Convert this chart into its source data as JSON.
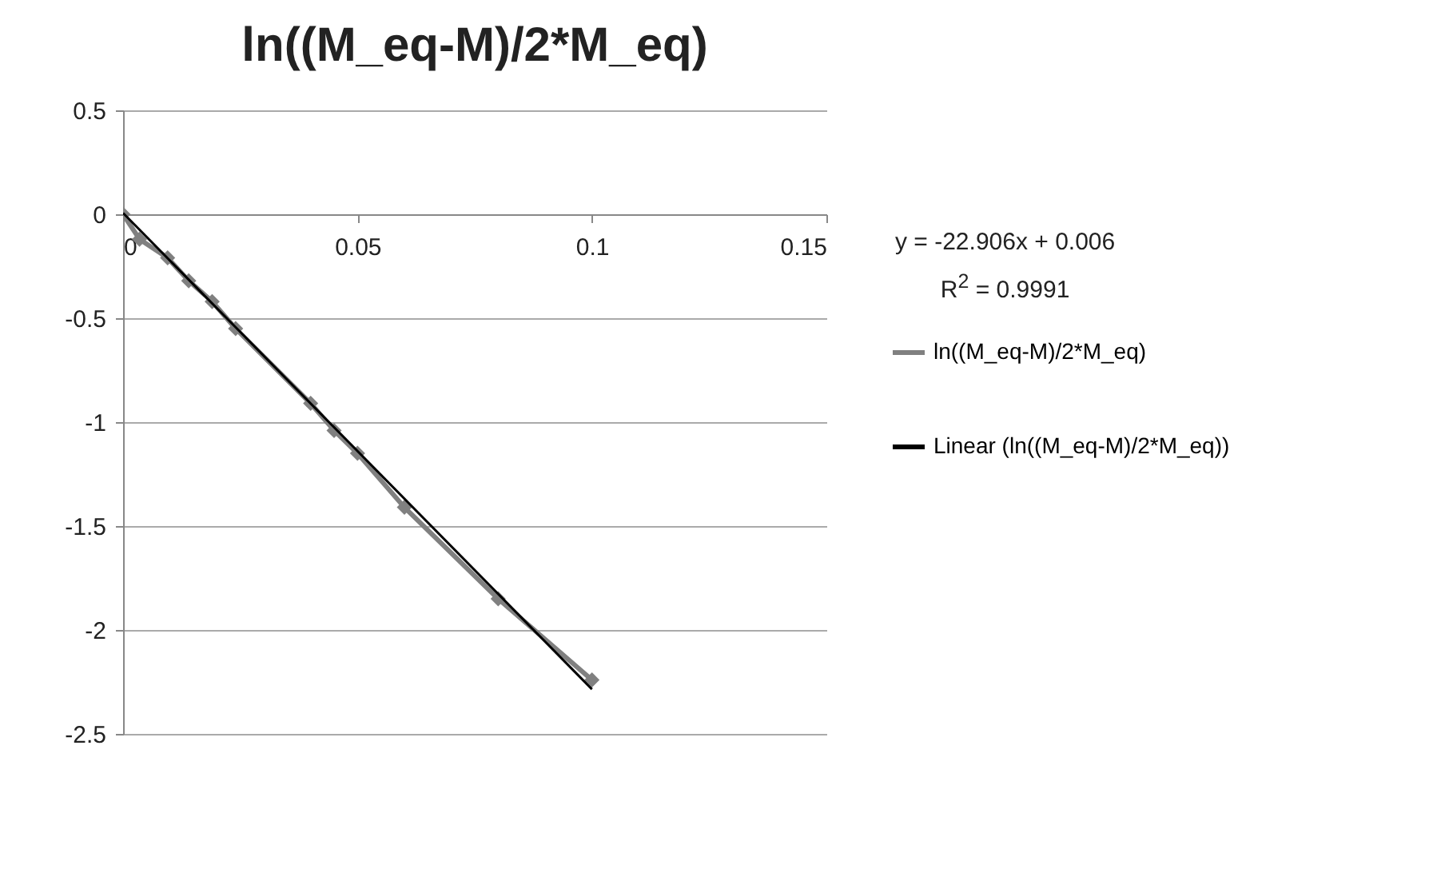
{
  "chart_data": {
    "type": "line",
    "title": "ln((M_eq-M)/2*M_eq)",
    "annotations": [
      "y = -22.906x + 0.006",
      "R$^{2}$ = 0.9991"
    ],
    "series": [
      {
        "name": "ln((M_eq-M)/2*M_eq)",
        "color": "#808080",
        "marker": "diamond",
        "x": [
          0,
          0.0035,
          0.0095,
          0.014,
          0.019,
          0.024,
          0.04,
          0.045,
          0.05,
          0.06,
          0.08,
          0.1
        ],
        "values": [
          0,
          -0.12,
          -0.21,
          -0.32,
          -0.42,
          -0.55,
          -0.91,
          -1.04,
          -1.15,
          -1.41,
          -1.85,
          -2.24
        ]
      },
      {
        "name": "Linear (ln((M_eq-M)/2*M_eq))",
        "color": "#000000",
        "marker": "none",
        "x": [
          0,
          0.1
        ],
        "values": [
          0.006,
          -2.285
        ]
      }
    ],
    "xlim": [
      0,
      0.15
    ],
    "xticks": [
      0,
      0.05,
      0.1,
      0.15
    ],
    "ylim": [
      -2.5,
      0.5
    ],
    "yticks": [
      -2.5,
      -2,
      -1.5,
      -1,
      -0.5,
      0,
      0.5
    ],
    "grid": "y",
    "legend": "right",
    "line_style": "solid"
  }
}
